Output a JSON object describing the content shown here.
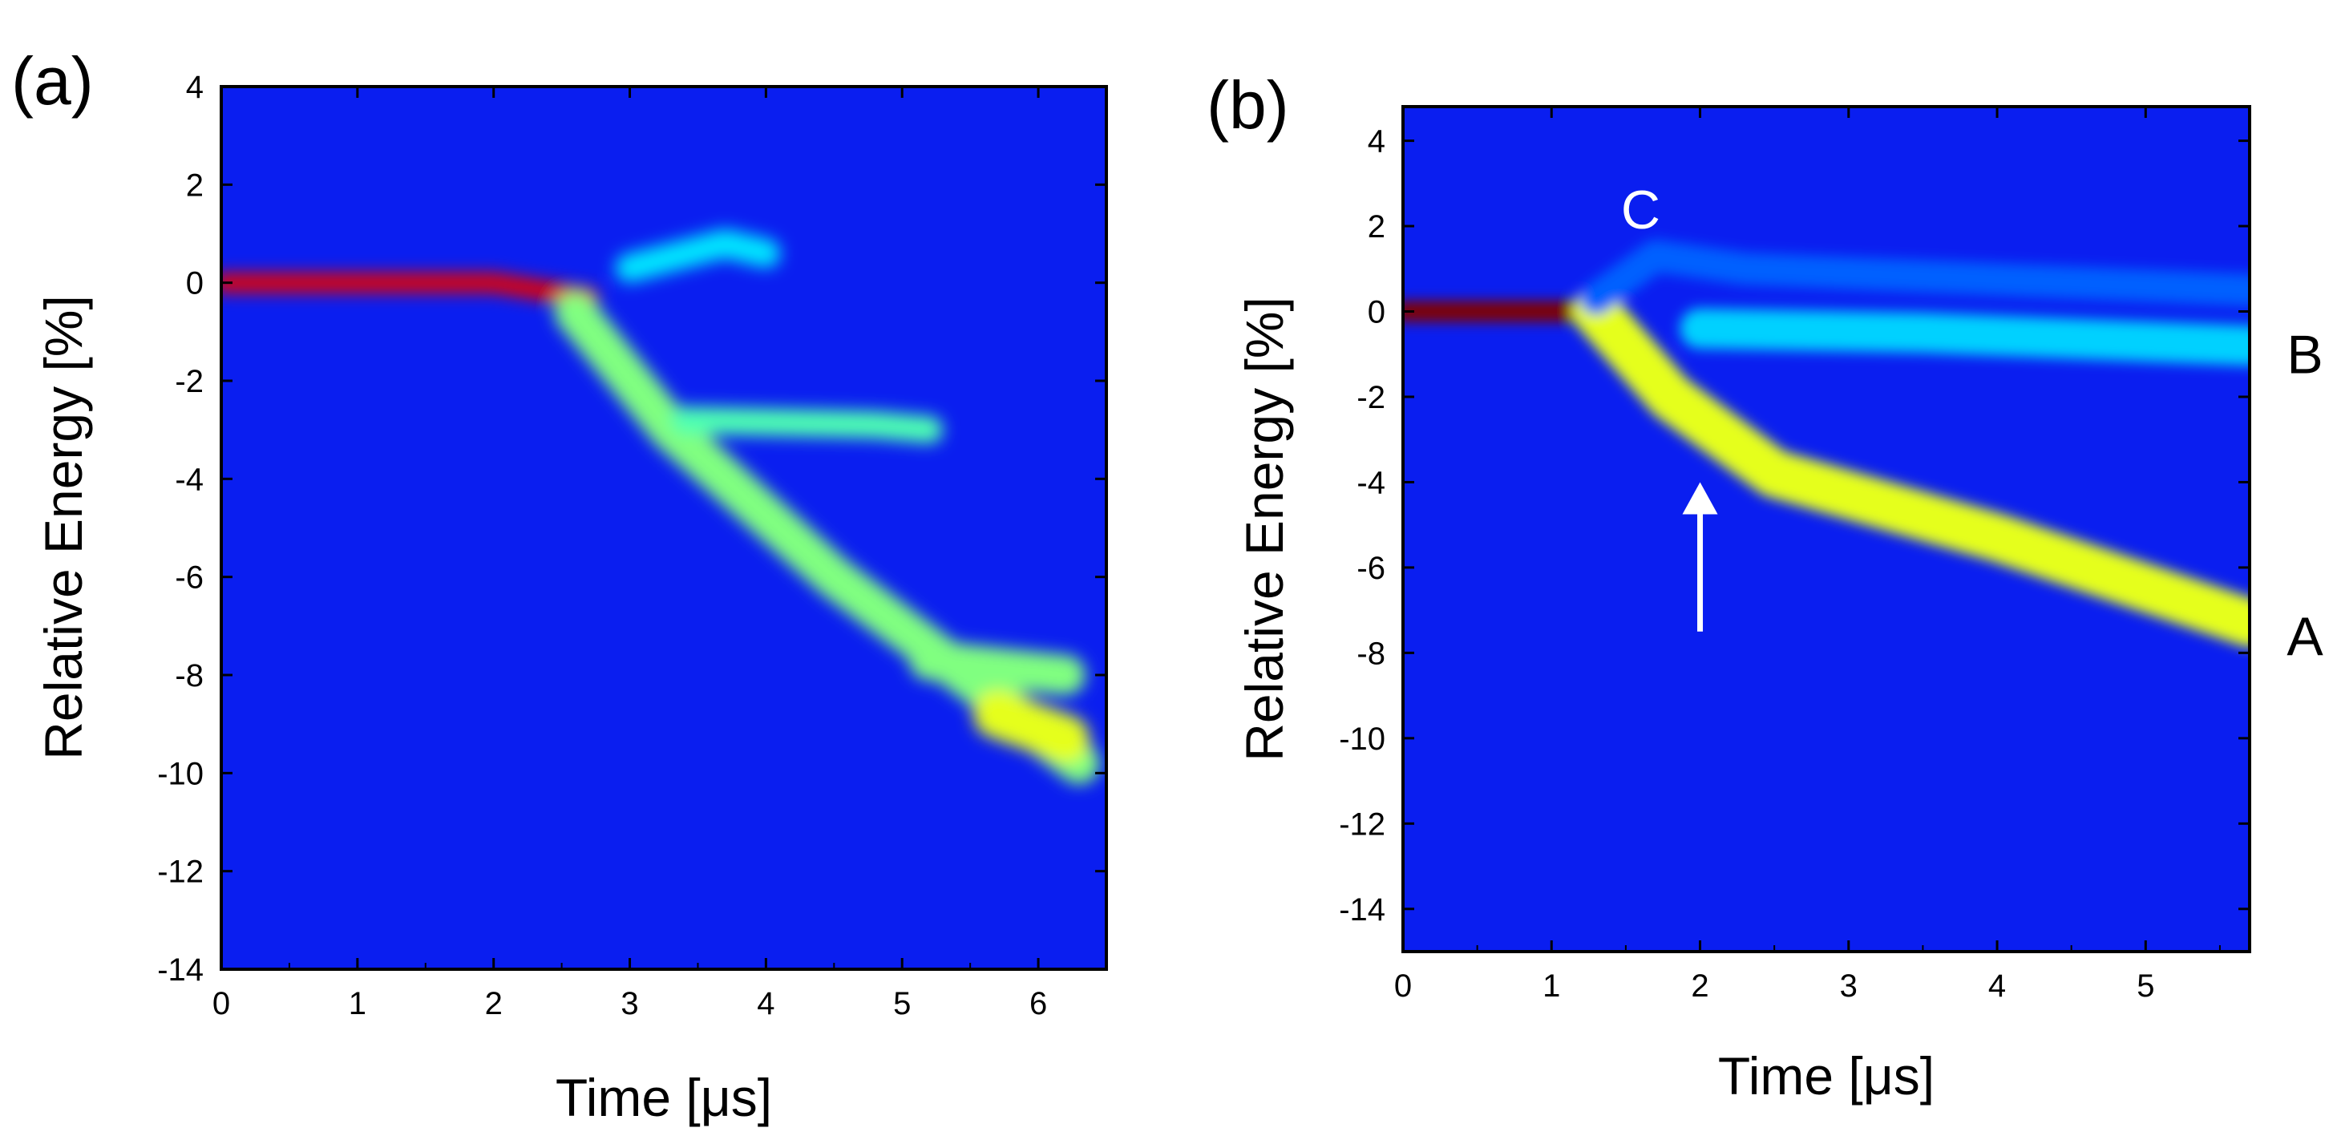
{
  "chart_data": [
    {
      "panel": "(a)",
      "type": "heatmap",
      "title": "",
      "xlabel": "Time [μs]",
      "ylabel": "Relative Energy [%]",
      "xlim": [
        0,
        6.5
      ],
      "ylim": [
        -14,
        4
      ],
      "xticks": [
        "0",
        "1",
        "2",
        "3",
        "4",
        "5",
        "6"
      ],
      "yticks": [
        "4",
        "2",
        "0",
        "-2",
        "-4",
        "-6",
        "-8",
        "-10",
        "-12",
        "-14"
      ],
      "colormap": "jet",
      "features": [
        {
          "name": "core",
          "points": [
            [
              0,
              0
            ],
            [
              1,
              0
            ],
            [
              2,
              0
            ],
            [
              2.7,
              -0.3
            ]
          ],
          "intensity": 0.9
        },
        {
          "name": "main-track",
          "points": [
            [
              2.6,
              -0.6
            ],
            [
              3.3,
              -3.0
            ],
            [
              4.5,
              -6.0
            ],
            [
              5.6,
              -8.3
            ],
            [
              6.3,
              -9.8
            ]
          ],
          "intensity": 0.5
        },
        {
          "name": "upper-branch",
          "points": [
            [
              3.0,
              0.3
            ],
            [
              3.7,
              0.8
            ],
            [
              4.0,
              0.6
            ]
          ],
          "intensity": 0.35
        },
        {
          "name": "band-minus-3",
          "points": [
            [
              3.4,
              -2.8
            ],
            [
              4.8,
              -2.9
            ],
            [
              5.2,
              -3.0
            ]
          ],
          "intensity": 0.45
        },
        {
          "name": "band-minus-8",
          "points": [
            [
              5.2,
              -7.7
            ],
            [
              6.2,
              -8.0
            ]
          ],
          "intensity": 0.5
        },
        {
          "name": "band-minus-9",
          "points": [
            [
              5.7,
              -8.8
            ],
            [
              6.2,
              -9.3
            ]
          ],
          "intensity": 0.6
        }
      ]
    },
    {
      "panel": "(b)",
      "type": "heatmap",
      "title": "",
      "xlabel": "Time [μs]",
      "ylabel": "Relative Energy [%]",
      "xlim": [
        0,
        5.7
      ],
      "ylim": [
        -15,
        4.8
      ],
      "xticks": [
        "0",
        "1",
        "2",
        "3",
        "4",
        "5"
      ],
      "yticks": [
        "4",
        "2",
        "0",
        "-2",
        "-4",
        "-6",
        "-8",
        "-10",
        "-12",
        "-14"
      ],
      "colormap": "jet",
      "annotations": [
        {
          "text": "C",
          "x": 1.6,
          "y": 2.4
        },
        {
          "text": "B",
          "x": 5.95,
          "y": -1.0
        },
        {
          "text": "A",
          "x": 5.95,
          "y": -7.6
        }
      ],
      "arrow": {
        "from": [
          2.0,
          -7.5
        ],
        "to": [
          2.0,
          -4.0
        ]
      },
      "features": [
        {
          "name": "core",
          "points": [
            [
              0,
              0
            ],
            [
              1.3,
              0
            ]
          ],
          "intensity": 1.0
        },
        {
          "name": "branch-A",
          "points": [
            [
              1.3,
              0
            ],
            [
              1.8,
              -2.0
            ],
            [
              2.5,
              -3.8
            ],
            [
              4.0,
              -5.3
            ],
            [
              5.7,
              -7.3
            ]
          ],
          "intensity": 0.6
        },
        {
          "name": "branch-B",
          "points": [
            [
              2.0,
              -0.4
            ],
            [
              3.5,
              -0.5
            ],
            [
              5.7,
              -0.8
            ]
          ],
          "intensity": 0.33
        },
        {
          "name": "branch-C",
          "points": [
            [
              1.3,
              0.3
            ],
            [
              1.7,
              1.3
            ],
            [
              2.3,
              1.0
            ],
            [
              5.7,
              0.5
            ]
          ],
          "intensity": 0.22
        }
      ]
    }
  ]
}
